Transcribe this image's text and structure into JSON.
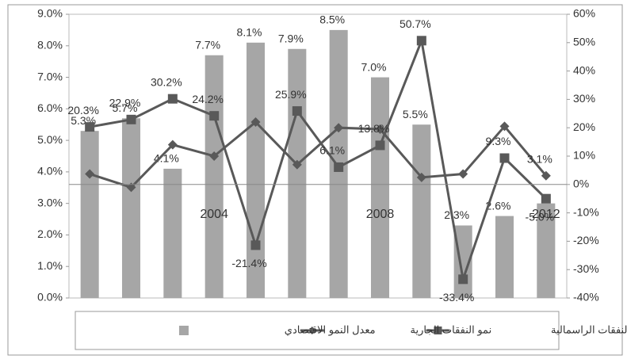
{
  "chart_data": {
    "type": "combo",
    "categories": [
      null,
      null,
      null,
      "2004",
      null,
      null,
      null,
      "2008",
      null,
      null,
      null,
      "2012"
    ],
    "series": [
      {
        "name": "معدل النمو الاقتصادي",
        "type": "bar",
        "color": "#a6a6a6",
        "axis": "y",
        "values": [
          5.3,
          5.7,
          4.1,
          7.7,
          8.1,
          7.9,
          8.5,
          7.0,
          5.5,
          2.3,
          2.6,
          3.0
        ],
        "value_labels": [
          "5.3%",
          "5.7%",
          "4.1%",
          "7.7%",
          "8.1%",
          "7.9%",
          "8.5%",
          "7.0%",
          "5.5%",
          "2.3%",
          "2.6%",
          null
        ]
      },
      {
        "name": "نمو النفقات الجارية",
        "type": "line",
        "marker": "diamond",
        "color": "#595959",
        "axis": "y2",
        "values": [
          3.7,
          -1,
          14,
          10,
          22,
          7,
          20,
          19.5,
          2.5,
          3.7,
          20.5,
          3.1
        ],
        "value_labels": [
          null,
          null,
          null,
          null,
          null,
          null,
          null,
          null,
          null,
          null,
          null,
          "3.1%"
        ]
      },
      {
        "name": "نمو النفقات الراسمالية",
        "type": "line",
        "marker": "square",
        "color": "#595959",
        "axis": "y2",
        "values": [
          20.3,
          22.9,
          30.2,
          24.2,
          -21.4,
          25.9,
          6.1,
          13.8,
          50.7,
          -33.4,
          9.3,
          -5.0
        ],
        "value_labels": [
          "20.3%",
          "22.9%",
          "30.2%",
          "24.2%",
          "-21.4%",
          "25.9%",
          "6.1%",
          "13.8%",
          "50.7%",
          "-33.4%",
          "9.3%",
          "-5.0%"
        ]
      }
    ],
    "ylim": [
      0,
      9
    ],
    "yticks": [
      {
        "value": 0,
        "label": "0.0%"
      },
      {
        "value": 1,
        "label": "1.0%"
      },
      {
        "value": 2,
        "label": "2.0%"
      },
      {
        "value": 3,
        "label": "3.0%"
      },
      {
        "value": 4,
        "label": "4.0%"
      },
      {
        "value": 5,
        "label": "5.0%"
      },
      {
        "value": 6,
        "label": "6.0%"
      },
      {
        "value": 7,
        "label": "7.0%"
      },
      {
        "value": 8,
        "label": "8.0%"
      },
      {
        "value": 9,
        "label": "9.0%"
      }
    ],
    "y2lim": [
      -40,
      60
    ],
    "y2ticks": [
      {
        "value": -40,
        "label": "-40%"
      },
      {
        "value": -30,
        "label": "-30%"
      },
      {
        "value": -20,
        "label": "-20%"
      },
      {
        "value": -10,
        "label": "-10%"
      },
      {
        "value": 0,
        "label": "0%"
      },
      {
        "value": 10,
        "label": "10%"
      },
      {
        "value": 20,
        "label": "20%"
      },
      {
        "value": 30,
        "label": "30%"
      },
      {
        "value": 40,
        "label": "40%"
      },
      {
        "value": 50,
        "label": "50%"
      },
      {
        "value": 60,
        "label": "60%"
      }
    ],
    "legend": "bottom"
  }
}
